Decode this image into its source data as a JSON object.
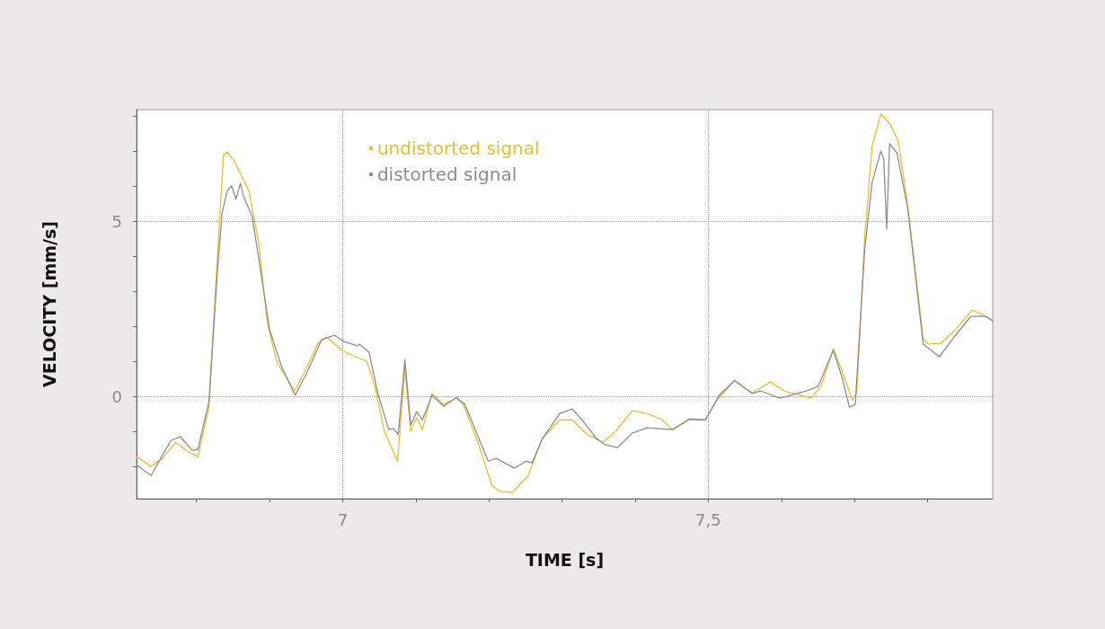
{
  "chart_data": {
    "type": "line",
    "xlabel": "TIME [s]",
    "ylabel": "VELOCITY [mm/s]",
    "xlim": [
      6.718,
      7.889
    ],
    "ylim": [
      -2.92,
      8.18
    ],
    "xticks": [
      {
        "value": 6.8,
        "label": null
      },
      {
        "value": 6.9,
        "label": null
      },
      7,
      {
        "value": 7.1,
        "label": null
      },
      {
        "value": 7.2,
        "label": null
      },
      {
        "value": 7.3,
        "label": null
      },
      {
        "value": 7.4,
        "label": null
      },
      {
        "value": 7.5,
        "label": "7,5"
      },
      {
        "value": 7.6,
        "label": null
      },
      {
        "value": 7.7,
        "label": null
      },
      {
        "value": 7.8,
        "label": null
      }
    ],
    "yticks": [
      {
        "value": -2,
        "label": null
      },
      {
        "value": -1,
        "label": null
      },
      0,
      {
        "value": 1,
        "label": null
      },
      {
        "value": 2,
        "label": null
      },
      {
        "value": 3,
        "label": null
      },
      {
        "value": 4,
        "label": null
      },
      5,
      {
        "value": 6,
        "label": null
      },
      {
        "value": 7,
        "label": null
      },
      {
        "value": 8,
        "label": null
      }
    ],
    "grid": true,
    "legend": "top left",
    "marker": "none",
    "line_style": "solid",
    "series": [
      {
        "name": "undistorted signal",
        "color": "#e8c02a",
        "x": [
          6.718,
          6.738,
          6.753,
          6.772,
          6.787,
          6.802,
          6.817,
          6.827,
          6.837,
          6.842,
          6.851,
          6.872,
          6.885,
          6.897,
          6.91,
          6.934,
          6.95,
          6.966,
          6.978,
          6.999,
          7.017,
          7.033,
          7.044,
          7.057,
          7.075,
          7.085,
          7.093,
          7.101,
          7.109,
          7.122,
          7.138,
          7.155,
          7.165,
          7.187,
          7.204,
          7.216,
          7.232,
          7.253,
          7.273,
          7.297,
          7.314,
          7.334,
          7.355,
          7.371,
          7.396,
          7.416,
          7.437,
          7.451,
          7.474,
          7.496,
          7.512,
          7.536,
          7.56,
          7.585,
          7.604,
          7.641,
          7.654,
          7.671,
          7.683,
          7.697,
          7.703,
          7.714,
          7.724,
          7.736,
          7.748,
          7.76,
          7.773,
          7.794,
          7.801,
          7.818,
          7.838,
          7.861,
          7.875,
          7.889
        ],
        "values": [
          -1.72,
          -2.0,
          -1.77,
          -1.31,
          -1.56,
          -1.72,
          -0.31,
          3.44,
          6.9,
          6.97,
          6.74,
          5.85,
          4.38,
          2.08,
          0.97,
          0.15,
          0.79,
          1.51,
          1.69,
          1.31,
          1.13,
          1.0,
          0.28,
          -1.0,
          -1.85,
          0.79,
          -1.0,
          -0.62,
          -0.95,
          0.08,
          -0.23,
          -0.05,
          -0.23,
          -1.44,
          -2.54,
          -2.72,
          -2.74,
          -2.28,
          -1.21,
          -0.67,
          -0.67,
          -1.08,
          -1.31,
          -1.05,
          -0.41,
          -0.49,
          -0.67,
          -0.95,
          -0.67,
          -0.67,
          -0.1,
          0.44,
          0.1,
          0.41,
          0.15,
          -0.05,
          0.28,
          1.36,
          0.72,
          -0.1,
          0.1,
          4.56,
          7.13,
          8.05,
          7.79,
          7.28,
          5.41,
          1.64,
          1.49,
          1.51,
          1.9,
          2.46,
          2.33,
          2.15
        ]
      },
      {
        "name": "distorted signal",
        "color": "#8c8c98",
        "x": [
          6.719,
          6.738,
          6.751,
          6.765,
          6.778,
          6.794,
          6.802,
          6.817,
          6.829,
          6.835,
          6.842,
          6.848,
          6.854,
          6.86,
          6.864,
          6.876,
          6.888,
          6.9,
          6.916,
          6.935,
          6.952,
          6.971,
          6.989,
          7.002,
          7.02,
          7.023,
          7.036,
          7.048,
          7.063,
          7.069,
          7.076,
          7.085,
          7.093,
          7.101,
          7.109,
          7.122,
          7.138,
          7.156,
          7.167,
          7.199,
          7.21,
          7.235,
          7.251,
          7.259,
          7.273,
          7.297,
          7.314,
          7.33,
          7.346,
          7.359,
          7.376,
          7.396,
          7.416,
          7.451,
          7.474,
          7.496,
          7.515,
          7.536,
          7.56,
          7.572,
          7.598,
          7.634,
          7.65,
          7.671,
          7.683,
          7.693,
          7.701,
          7.714,
          7.724,
          7.736,
          7.74,
          7.744,
          7.748,
          7.758,
          7.773,
          7.794,
          7.816,
          7.838,
          7.859,
          7.88,
          7.889
        ],
        "values": [
          -1.97,
          -2.26,
          -1.77,
          -1.26,
          -1.15,
          -1.54,
          -1.51,
          -0.15,
          3.69,
          5.23,
          5.87,
          6.0,
          5.62,
          6.08,
          5.72,
          5.15,
          3.54,
          1.9,
          0.87,
          0.03,
          0.72,
          1.62,
          1.74,
          1.56,
          1.44,
          1.49,
          1.26,
          0.08,
          -0.95,
          -0.92,
          -1.08,
          1.05,
          -0.82,
          -0.44,
          -0.67,
          0.03,
          -0.28,
          -0.03,
          -0.23,
          -1.85,
          -1.77,
          -2.05,
          -1.85,
          -1.9,
          -1.21,
          -0.49,
          -0.36,
          -0.74,
          -1.18,
          -1.38,
          -1.46,
          -1.05,
          -0.9,
          -0.95,
          -0.64,
          -0.67,
          0.03,
          0.46,
          0.08,
          0.15,
          -0.05,
          0.15,
          0.28,
          1.31,
          0.54,
          -0.31,
          -0.23,
          4.21,
          6.1,
          7.0,
          6.77,
          4.77,
          7.21,
          6.95,
          5.33,
          1.49,
          1.13,
          1.74,
          2.28,
          2.28,
          2.15
        ]
      }
    ]
  }
}
